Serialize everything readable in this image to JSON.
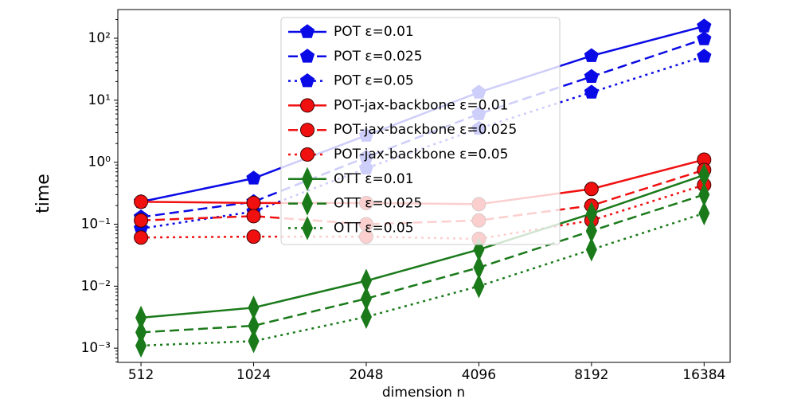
{
  "chart_data": {
    "type": "line",
    "xlabel": "dimension n",
    "ylabel": "time",
    "x": [
      512,
      1024,
      2048,
      4096,
      8192,
      16384
    ],
    "xscale": "log2",
    "xlim": [
      444,
      19230
    ],
    "xticks": [
      512,
      1024,
      2048,
      4096,
      8192,
      16384
    ],
    "yscale": "log",
    "ylim": [
      0.00059,
      290
    ],
    "yticks": [
      {
        "value": 0.001,
        "label": "10⁻³"
      },
      {
        "value": 0.01,
        "label": "10⁻²"
      },
      {
        "value": 0.1,
        "label": "10⁻¹"
      },
      {
        "value": 1,
        "label": "10⁰"
      },
      {
        "value": 10,
        "label": "10¹"
      },
      {
        "value": 100,
        "label": "10²"
      }
    ],
    "legend": "upper center",
    "series": [
      {
        "name": "POT  ε=0.01",
        "color": "#0a0ae6",
        "linestyle": "solid",
        "marker": "pentagon",
        "values": [
          0.23,
          0.55,
          2.7,
          13.4,
          52,
          156
        ]
      },
      {
        "name": "POT  ε=0.025",
        "color": "#0a0ae6",
        "linestyle": "dashed",
        "marker": "pentagon",
        "values": [
          0.13,
          0.23,
          1.2,
          6.0,
          24,
          97
        ]
      },
      {
        "name": "POT  ε=0.05",
        "color": "#0a0ae6",
        "linestyle": "dotted",
        "marker": "pentagon",
        "values": [
          0.085,
          0.16,
          0.8,
          3.5,
          13.4,
          51
        ]
      },
      {
        "name": "POT-jax-backbone  ε=0.01",
        "color": "#f01010",
        "linestyle": "solid",
        "marker": "circle",
        "values": [
          0.23,
          0.22,
          0.22,
          0.21,
          0.37,
          1.1
        ]
      },
      {
        "name": "POT-jax-backbone  ε=0.025",
        "color": "#f01010",
        "linestyle": "dashed",
        "marker": "circle",
        "values": [
          0.115,
          0.135,
          0.1,
          0.115,
          0.2,
          0.75
        ]
      },
      {
        "name": "POT-jax-backbone  ε=0.05",
        "color": "#f01010",
        "linestyle": "dotted",
        "marker": "circle",
        "values": [
          0.061,
          0.063,
          0.063,
          0.058,
          0.115,
          0.43
        ]
      },
      {
        "name": "OTT  ε=0.01",
        "color": "#1a7a1a",
        "linestyle": "solid",
        "marker": "diamond",
        "values": [
          0.0031,
          0.0045,
          0.0122,
          0.039,
          0.148,
          0.62
        ]
      },
      {
        "name": "OTT  ε=0.025",
        "color": "#1a7a1a",
        "linestyle": "dashed",
        "marker": "diamond",
        "values": [
          0.0018,
          0.0023,
          0.0063,
          0.02,
          0.078,
          0.3
        ]
      },
      {
        "name": "OTT  ε=0.05",
        "color": "#1a7a1a",
        "linestyle": "dotted",
        "marker": "diamond",
        "values": [
          0.0011,
          0.0013,
          0.0032,
          0.01,
          0.039,
          0.15
        ]
      }
    ]
  }
}
